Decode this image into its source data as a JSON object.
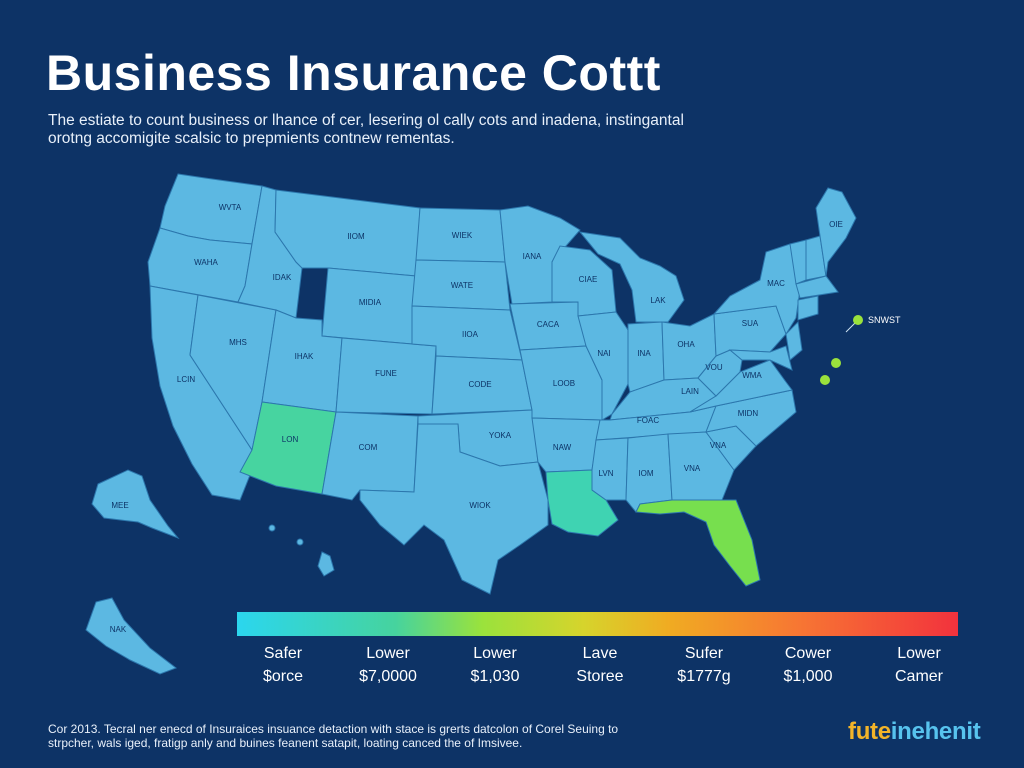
{
  "title": "Business Insurance Cottt",
  "subtitle": "The estiate to count business or lhance of cer, lesering ol cally cots and inadena, instingantal orotng accomigite scalsic to prepmients contnew rementas.",
  "map": {
    "state_fill": "#5cb8e2",
    "state_stroke": "#2c77ad",
    "highlight_colors": {
      "arizona": "#47d4a0",
      "louisiana": "#3fd3b2",
      "florida": "#77df4e"
    },
    "state_labels": {
      "wa": "WVTA",
      "or": "WAHA",
      "ca": "LCIN",
      "nv": "MHS",
      "id": "IDAK",
      "mt": "IIOM",
      "wy": "MIDIA",
      "ut": "IHAK",
      "co": "FUNE",
      "az": "LON",
      "nm": "COM",
      "nd": "WIEK",
      "sd": "WATE",
      "ne": "IIOA",
      "ks": "CODE",
      "ok": "YOKA",
      "tx": "WIOK",
      "mn": "IANA",
      "ia": "CACA",
      "mo": "LOOB",
      "ar": "NAW",
      "wi": "CIAE",
      "il": "NAI",
      "mi": "LAK",
      "in": "INA",
      "oh": "OHA",
      "ky": "FOAC",
      "tn": "LAIN",
      "ms": "LVN",
      "al": "IOM",
      "ga": "VNA",
      "sc": "VNA",
      "nc": "MIDN",
      "va": "WMA",
      "wv": "VOU",
      "pa": "SUA",
      "ny": "MAC",
      "me": "OIE",
      "ak": "MEE",
      "hi_label": "NAK"
    },
    "annotation": "SNWST"
  },
  "scale": {
    "colors": [
      "#2bd6ee",
      "#46d39e",
      "#9ae23c",
      "#d6d42c",
      "#f0ab22",
      "#f77633",
      "#f2323d"
    ],
    "items": [
      {
        "top": "Safer",
        "bottom": "$orce"
      },
      {
        "top": "Lower",
        "bottom": "$7,0000"
      },
      {
        "top": "Lower",
        "bottom": "$1,030"
      },
      {
        "top": "Lave",
        "bottom": "Storee"
      },
      {
        "top": "Sufer",
        "bottom": "$1777g"
      },
      {
        "top": "Cower",
        "bottom": "$1,000"
      },
      {
        "top": "Lower",
        "bottom": "Camer"
      }
    ]
  },
  "footer": "Cor 2013. Tecral ner enecd of Insuraices insuance detaction with stace is grerts datcolon of Corel Seuing to strpcher, wals iged, fratigp anly and buines feanent satapit, loating canced the of Imsivee.",
  "brand": {
    "part1": "fute",
    "part2": "inehenit"
  }
}
